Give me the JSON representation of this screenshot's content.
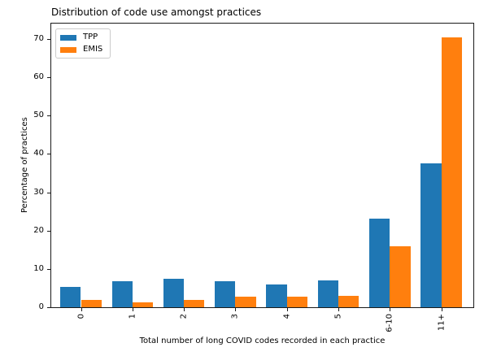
{
  "chart_data": {
    "type": "bar",
    "title": "Distribution of code use amongst practices",
    "xlabel": "Total number of long COVID codes recorded in each practice",
    "ylabel": "Percentage of practices",
    "categories": [
      "0",
      "1",
      "2",
      "3",
      "4",
      "5",
      "6-10",
      "11+"
    ],
    "series": [
      {
        "name": "TPP",
        "color": "#1f77b4",
        "values": [
          5.3,
          6.8,
          7.5,
          6.8,
          6.0,
          7.0,
          23.2,
          37.5
        ]
      },
      {
        "name": "EMIS",
        "color": "#ff7f0e",
        "values": [
          1.9,
          1.2,
          2.0,
          2.8,
          2.8,
          3.0,
          16.0,
          70.5
        ]
      }
    ],
    "yticks": [
      0,
      10,
      20,
      30,
      40,
      50,
      60,
      70
    ],
    "ylim": [
      0,
      74
    ],
    "xtick_rotation": 90,
    "grid": false,
    "legend_position": "upper-left",
    "legend_labels": [
      "TPP",
      "EMIS"
    ]
  }
}
